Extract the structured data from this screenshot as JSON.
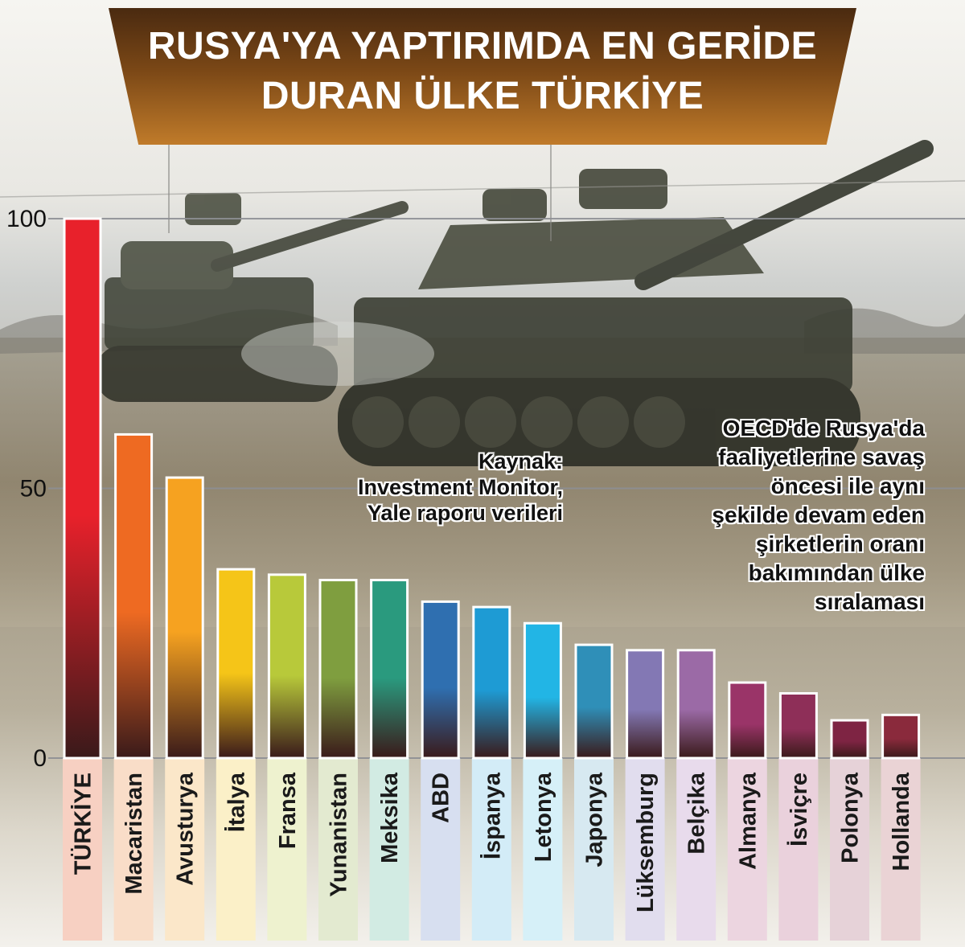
{
  "title": {
    "line1": "RUSYA'YA YAPTIRIMDA EN GERİDE",
    "line2": "DURAN ÜLKE TÜRKİYE"
  },
  "source": {
    "lines": [
      "Kaynak:",
      "Investment Monitor,",
      "Yale raporu verileri"
    ]
  },
  "description": {
    "lines": [
      "OECD'de Rusya'da",
      "faaliyetlerine savaş",
      "öncesi ile aynı",
      "şekilde devam eden",
      "şirketlerin oranı",
      "bakımından ülke",
      "sıralaması"
    ]
  },
  "chart_data": {
    "type": "bar",
    "categories": [
      "TÜRKİYE",
      "Macaristan",
      "Avusturya",
      "İtalya",
      "Fransa",
      "Yunanistan",
      "Meksika",
      "ABD",
      "İspanya",
      "Letonya",
      "Japonya",
      "Lüksemburg",
      "Belçika",
      "Almanya",
      "İsviçre",
      "Polonya",
      "Hollanda"
    ],
    "values": [
      100,
      60,
      52,
      35,
      34,
      33,
      33,
      29,
      28,
      25,
      21,
      20,
      20,
      14,
      12,
      7,
      8
    ],
    "yticks": [
      0,
      50,
      100
    ],
    "ylim": [
      0,
      100
    ],
    "grid": true,
    "colors": [
      "#e8212b",
      "#ee6a22",
      "#f6a220",
      "#f5c518",
      "#b8c93a",
      "#7f9e3f",
      "#2a9a7e",
      "#2f6fb0",
      "#1e9bd4",
      "#22b5e5",
      "#2f8fb8",
      "#8378b4",
      "#9b6aa6",
      "#9a3468",
      "#8e2f58",
      "#7e2443",
      "#8a2a3c"
    ],
    "label_bg_colors": [
      "#f7d0c2",
      "#f9ddc8",
      "#fbe7c9",
      "#fbf0c8",
      "#eef2cf",
      "#e3ead0",
      "#d2ebe3",
      "#d7dff0",
      "#d3ecf7",
      "#d6f0f8",
      "#d7e9f1",
      "#e1ddee",
      "#e8dbec",
      "#ecd5e0",
      "#ead1dc",
      "#e6d2d8",
      "#ead3d5"
    ]
  }
}
